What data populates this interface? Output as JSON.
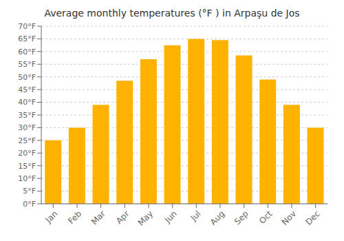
{
  "chart_data": {
    "type": "bar",
    "title": "Average monthly temperatures (°F ) in Arpaşu de Jos",
    "categories": [
      "Jan",
      "Feb",
      "Mar",
      "Apr",
      "May",
      "Jun",
      "Jul",
      "Aug",
      "Sep",
      "Oct",
      "Nov",
      "Dec"
    ],
    "values": [
      25,
      30,
      39,
      48.5,
      57,
      62.5,
      65,
      64.5,
      58.5,
      49,
      39,
      30
    ],
    "color": "#FFB300",
    "ylim": [
      0,
      70
    ],
    "yticks": [
      {
        "value": 0,
        "label": "0°F"
      },
      {
        "value": 5,
        "label": "5°F"
      },
      {
        "value": 10,
        "label": "10°F"
      },
      {
        "value": 15,
        "label": "15°F"
      },
      {
        "value": 20,
        "label": "20°F"
      },
      {
        "value": 25,
        "label": "25°F"
      },
      {
        "value": 30,
        "label": "30°F"
      },
      {
        "value": 35,
        "label": "35°F"
      },
      {
        "value": 40,
        "label": "40°F"
      },
      {
        "value": 45,
        "label": "45°F"
      },
      {
        "value": 50,
        "label": "50°F"
      },
      {
        "value": 55,
        "label": "55°F"
      },
      {
        "value": 60,
        "label": "60°F"
      },
      {
        "value": 65,
        "label": "65°F"
      },
      {
        "value": 70,
        "label": "70°F"
      }
    ],
    "grid": true
  }
}
